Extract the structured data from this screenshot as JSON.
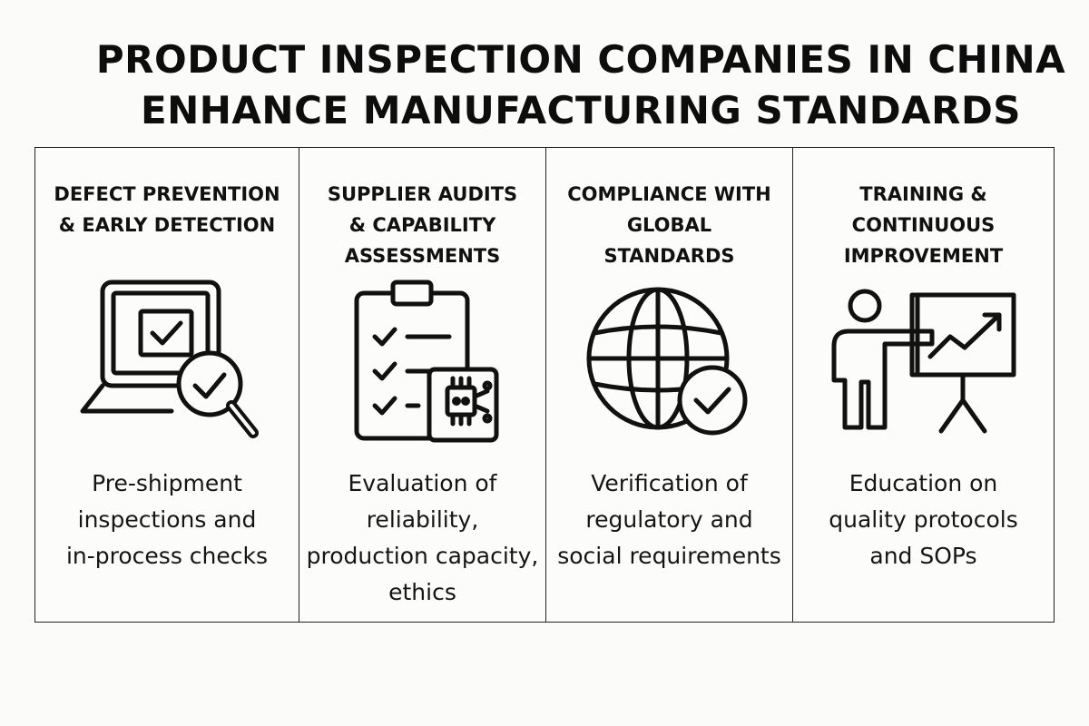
{
  "title": {
    "line1": "PRODUCT INSPECTION COMPANIES IN CHINA",
    "line2": "ENHANCE MANUFACTURING STANDARDS"
  },
  "panels": [
    {
      "heading": [
        "DEFECT PREVENTION",
        "& EARLY DETECTION"
      ],
      "icon": "laptop-magnifier-check-icon",
      "description": [
        "Pre-shipment",
        "inspections and",
        "in-process checks"
      ]
    },
    {
      "heading": [
        "SUPPLIER AUDITS",
        "& CAPABILITY",
        "ASSESSMENTS"
      ],
      "icon": "clipboard-checklist-chip-icon",
      "description": [
        "Evaluation of",
        "reliability,",
        "production capacity,",
        "ethics"
      ]
    },
    {
      "heading": [
        "COMPLIANCE WITH",
        "GLOBAL",
        "STANDARDS"
      ],
      "icon": "globe-check-icon",
      "description": [
        "Verification of",
        "regulatory and",
        "social requirements"
      ]
    },
    {
      "heading": [
        "TRAINING &",
        "CONTINUOUS",
        "IMPROVEMENT"
      ],
      "icon": "presenter-growth-chart-icon",
      "description": [
        "Education on",
        "quality protocols",
        "and SOPs"
      ]
    }
  ],
  "colors": {
    "background": "#fbfbf9",
    "ink": "#111111",
    "border": "#222222"
  }
}
